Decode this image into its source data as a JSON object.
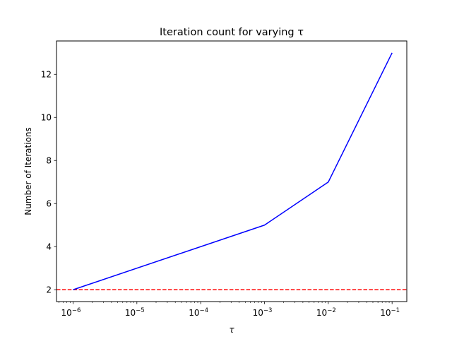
{
  "chart_data": {
    "type": "line",
    "title": "Iteration count for varying τ",
    "xlabel": "τ",
    "ylabel": "Number of Iterations",
    "xscale": "log",
    "xlim": [
      5.5e-07,
      0.17
    ],
    "ylim": [
      1.45,
      13.55
    ],
    "grid": false,
    "legend": "none",
    "x_ticks": [
      {
        "value": 1e-06,
        "base": "10",
        "exp": "−6"
      },
      {
        "value": 1e-05,
        "base": "10",
        "exp": "−5"
      },
      {
        "value": 0.0001,
        "base": "10",
        "exp": "−4"
      },
      {
        "value": 0.001,
        "base": "10",
        "exp": "−3"
      },
      {
        "value": 0.01,
        "base": "10",
        "exp": "−2"
      },
      {
        "value": 0.1,
        "base": "10",
        "exp": "−1"
      }
    ],
    "y_ticks": [
      2,
      4,
      6,
      8,
      10,
      12
    ],
    "series": [
      {
        "color": "#0000ff",
        "style": "solid",
        "x": [
          1e-06,
          0.001,
          0.01,
          0.1
        ],
        "y": [
          2,
          5,
          7,
          13
        ]
      }
    ],
    "reference_lines": [
      {
        "orientation": "horizontal",
        "y": 2,
        "color": "#ff0000",
        "style": "dashed"
      }
    ]
  }
}
